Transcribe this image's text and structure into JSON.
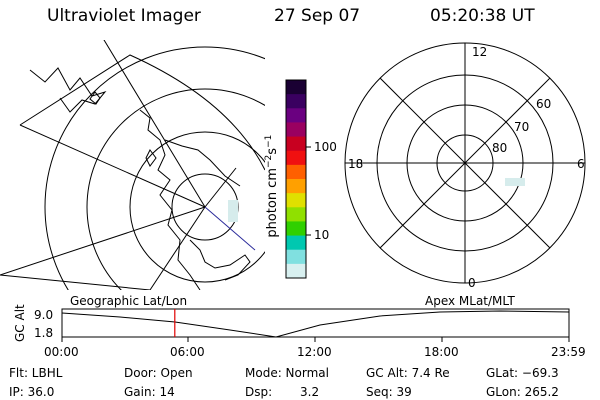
{
  "header": {
    "title": "Ultraviolet Imager",
    "date": "27 Sep 07",
    "time": "05:20:38 UT"
  },
  "colorbar": {
    "unit_label": "photon cm",
    "unit_exp1": "−2",
    "unit_mid": "s",
    "unit_exp2": "−1",
    "tick_100": "100",
    "tick_10": "10",
    "colors": [
      "#1a0033",
      "#3a0060",
      "#6a0080",
      "#9a0060",
      "#c80020",
      "#f01010",
      "#ff6000",
      "#ffa000",
      "#e0e000",
      "#90e000",
      "#30d000",
      "#00c8b0",
      "#80e0e0",
      "#d8f0f0"
    ]
  },
  "geo_panel_label": "Geographic Lat/Lon",
  "mlt_panel": {
    "label": "Apex MLat/MLT",
    "mlt_12": "12",
    "mlt_18": "18",
    "mlt_6": "6",
    "mlt_0": "0",
    "lat_60": "60",
    "lat_70": "70",
    "lat_80": "80"
  },
  "timeline": {
    "axis_label": "GC Alt",
    "y_top": "9.0",
    "y_bottom": "1.8",
    "ticks": [
      "00:00",
      "06:00",
      "12:00",
      "18:00",
      "23:59"
    ],
    "current_time_fraction": 0.2225
  },
  "status": {
    "flt": "Flt: LBHL",
    "ip": "IP: 36.0",
    "door": "Door: Open",
    "gain": "Gain: 14",
    "mode": "Mode: Normal",
    "dsp_label": "Dsp:",
    "dsp_value": "3.2",
    "gc_alt": "GC Alt: 7.4 Re",
    "seq": "Seq: 39",
    "glat": "GLat: −69.3",
    "glon": "GLon: 265.2"
  }
}
